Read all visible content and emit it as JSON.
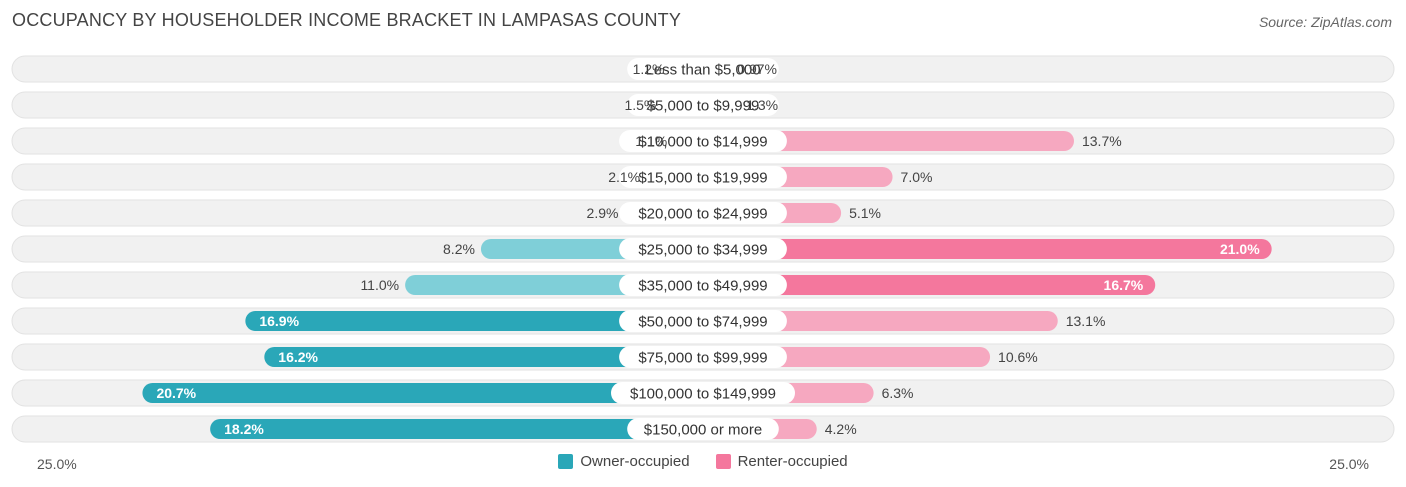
{
  "header": {
    "title": "OCCUPANCY BY HOUSEHOLDER INCOME BRACKET IN LAMPASAS COUNTY",
    "source": "Source: ZipAtlas.com"
  },
  "axis": {
    "left_label": "25.0%",
    "right_label": "25.0%"
  },
  "legend": {
    "owner_label": "Owner-occupied",
    "renter_label": "Renter-occupied"
  },
  "colors": {
    "owner_strong": "#2aa7b8",
    "owner_light": "#7fcfd8",
    "renter_strong": "#f4779d",
    "renter_light": "#f6a8c0",
    "row_bg": "#f1f1f1",
    "row_border": "#e2e2e2"
  },
  "chart_data": {
    "type": "bar",
    "orientation": "horizontal-diverging",
    "title": "OCCUPANCY BY HOUSEHOLDER INCOME BRACKET IN LAMPASAS COUNTY",
    "xlim": [
      -25,
      25
    ],
    "categories": [
      "Less than $5,000",
      "$5,000 to $9,999",
      "$10,000 to $14,999",
      "$15,000 to $19,999",
      "$20,000 to $24,999",
      "$25,000 to $34,999",
      "$35,000 to $49,999",
      "$50,000 to $74,999",
      "$75,000 to $99,999",
      "$100,000 to $149,999",
      "$150,000 or more"
    ],
    "series": [
      {
        "name": "Owner-occupied",
        "values": [
          1.2,
          1.5,
          1.1,
          2.1,
          2.9,
          8.2,
          11.0,
          16.9,
          16.2,
          20.7,
          18.2
        ],
        "labels": [
          "1.2%",
          "1.5%",
          "1.1%",
          "2.1%",
          "2.9%",
          "8.2%",
          "11.0%",
          "16.9%",
          "16.2%",
          "20.7%",
          "18.2%"
        ]
      },
      {
        "name": "Renter-occupied",
        "values": [
          0.97,
          1.3,
          13.7,
          7.0,
          5.1,
          21.0,
          16.7,
          13.1,
          10.6,
          6.3,
          4.2
        ],
        "labels": [
          "0.97%",
          "1.3%",
          "13.7%",
          "7.0%",
          "5.1%",
          "21.0%",
          "16.7%",
          "13.1%",
          "10.6%",
          "6.3%",
          "4.2%"
        ]
      }
    ]
  }
}
